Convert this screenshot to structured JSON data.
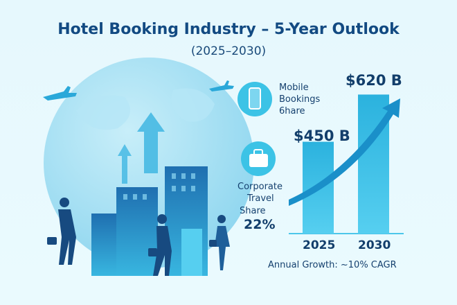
{
  "title": "Hotel Booking Industry – 5-Year Outlook",
  "subtitle": "(2025–2030)",
  "stats": {
    "mobile_label": "Mobile Bookings 6hare",
    "corporate_label_1": "Corporate",
    "corporate_label_2": "Travel",
    "corporate_label_3": "Share",
    "corporate_value": "22%"
  },
  "icons": [
    "airplane-icon",
    "globe-icon",
    "smartphone-icon",
    "briefcase-icon",
    "growth-arrow-icon",
    "buildings-icon",
    "business-traveler-icon"
  ],
  "colors": {
    "accent": "#2bb4e0",
    "bar": "#33bde3",
    "arrow": "#1a8fc9",
    "text": "#123e6b"
  },
  "chart_data": {
    "type": "bar",
    "categories": [
      "2025",
      "2030"
    ],
    "values": [
      450,
      620
    ],
    "data_labels": [
      "$450 B",
      "$620 B"
    ],
    "ylim": [
      0,
      700
    ],
    "grid": false,
    "annotation": "Annual Growth: ~10% CAGR"
  }
}
